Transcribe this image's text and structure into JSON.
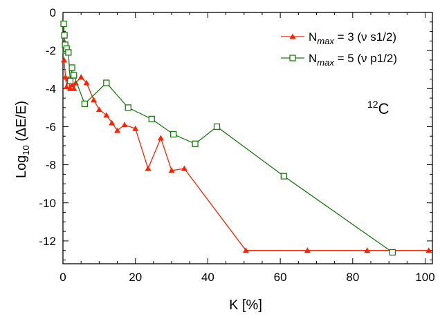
{
  "chart_data": {
    "type": "line",
    "title": "",
    "xlabel": "K [%]",
    "ylabel": "Log",
    "ylabel_sub": "10",
    "ylabel_tail": " (ΔE/E)",
    "xlim": [
      0,
      102
    ],
    "ylim": [
      -13.2,
      0
    ],
    "x_ticks": [
      0,
      20,
      40,
      60,
      80,
      100
    ],
    "y_ticks": [
      0,
      -2,
      -4,
      -6,
      -8,
      -10,
      -12
    ],
    "x_tick_labels": [
      "0",
      "20",
      "40",
      "60",
      "80",
      "100"
    ],
    "y_tick_labels": [
      "0",
      "-2",
      "-4",
      "-6",
      "-8",
      "-10",
      "-12"
    ],
    "grid": false,
    "legend_position": "top-right",
    "annotation": {
      "sup": "12",
      "text": "C"
    },
    "series": [
      {
        "name": "N",
        "name_sub": "max",
        "name_tail": " = 3 (ν s1/2)",
        "color": "#ff2200",
        "marker": "filled-triangle",
        "x": [
          0.3,
          0.7,
          1.0,
          1.5,
          2.0,
          2.5,
          3.0,
          3.5,
          5.0,
          6.5,
          8.5,
          10.0,
          12.0,
          13.5,
          15.0,
          17.0,
          20.0,
          23.5,
          27.0,
          30.0,
          33.5,
          50.5,
          67.5,
          84.0,
          101.0
        ],
        "y": [
          -2.5,
          -3.4,
          -3.9,
          -3.5,
          -4.0,
          -3.8,
          -4.0,
          -3.7,
          -3.4,
          -3.7,
          -4.6,
          -5.1,
          -5.4,
          -5.8,
          -6.2,
          -5.9,
          -6.1,
          -8.2,
          -6.6,
          -8.3,
          -8.2,
          -12.5,
          -12.5,
          -12.5,
          -12.5
        ]
      },
      {
        "name": "N",
        "name_sub": "max",
        "name_tail": " = 5 (ν p1/2)",
        "color": "#1a7a10",
        "marker": "open-square",
        "x": [
          0.2,
          0.4,
          0.6,
          0.8,
          1.0,
          1.5,
          2.0,
          2.5,
          3.0,
          6.0,
          12.0,
          18.0,
          24.5,
          30.5,
          36.5,
          42.5,
          61.0,
          91.0
        ],
        "y": [
          -0.6,
          -1.2,
          -1.7,
          -2.0,
          -1.9,
          -2.1,
          -3.6,
          -2.9,
          -3.3,
          -4.8,
          -3.7,
          -5.0,
          -5.6,
          -6.4,
          -6.9,
          -6.0,
          -8.6,
          -12.6
        ]
      }
    ]
  }
}
